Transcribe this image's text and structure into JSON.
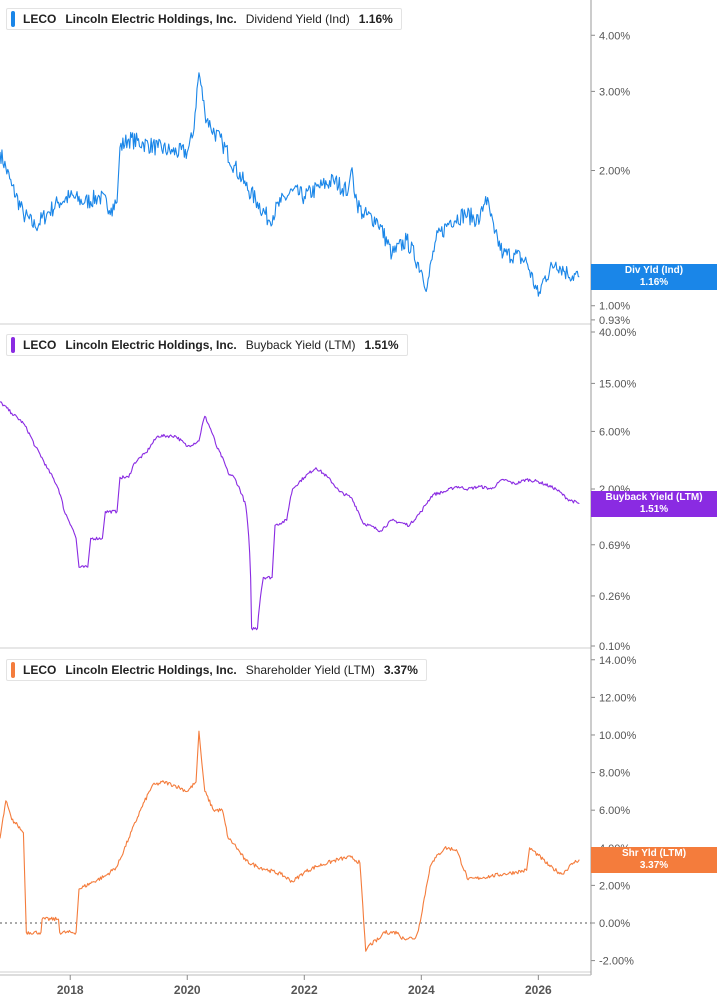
{
  "chart_data": [
    {
      "type": "line",
      "ticker": "LECO",
      "company": "Lincoln Electric Holdings, Inc.",
      "metric": "Dividend Yield (Ind)",
      "current_value": "1.16%",
      "badge_label": "Div Yld (Ind)",
      "color": "#1a86e8",
      "scale": "log",
      "ylim": [
        0.92,
        4.6
      ],
      "y_ticks": [
        {
          "value": 4.0,
          "label": "4.00%"
        },
        {
          "value": 3.0,
          "label": "3.00%"
        },
        {
          "value": 2.0,
          "label": "2.00%"
        },
        {
          "value": 1.0,
          "label": "1.00%"
        },
        {
          "value": 0.93,
          "label": "0.93%"
        }
      ],
      "series": [
        {
          "x": [
            2016.8,
            2017.0,
            2017.2,
            2017.4,
            2017.6,
            2017.8,
            2018.0,
            2018.25,
            2018.5,
            2018.7,
            2018.8,
            2018.85,
            2019.0,
            2019.25,
            2019.5,
            2019.75,
            2020.0,
            2020.1,
            2020.2,
            2020.3,
            2020.4,
            2020.6,
            2020.8,
            2021.0,
            2021.2,
            2021.4,
            2021.6,
            2021.8,
            2022.0,
            2022.3,
            2022.5,
            2022.75,
            2022.8,
            2022.9,
            2023.0,
            2023.25,
            2023.5,
            2023.75,
            2024.0,
            2024.1,
            2024.25,
            2024.5,
            2024.75,
            2025.0,
            2025.1,
            2025.25,
            2025.4,
            2025.6,
            2025.8,
            2026.0,
            2026.1,
            2026.3,
            2026.5,
            2026.7
          ],
          "y": [
            2.2,
            1.85,
            1.6,
            1.5,
            1.6,
            1.7,
            1.75,
            1.7,
            1.75,
            1.65,
            1.7,
            2.25,
            2.35,
            2.3,
            2.25,
            2.2,
            2.2,
            2.4,
            3.3,
            2.7,
            2.5,
            2.3,
            2.05,
            1.85,
            1.7,
            1.55,
            1.7,
            1.8,
            1.75,
            1.85,
            1.9,
            1.8,
            2.0,
            1.7,
            1.6,
            1.55,
            1.3,
            1.4,
            1.2,
            1.1,
            1.4,
            1.55,
            1.6,
            1.55,
            1.75,
            1.45,
            1.3,
            1.3,
            1.25,
            1.05,
            1.15,
            1.25,
            1.18,
            1.16
          ]
        }
      ]
    },
    {
      "type": "line",
      "ticker": "LECO",
      "company": "Lincoln Electric Holdings, Inc.",
      "metric": "Buyback Yield (LTM)",
      "current_value": "1.51%",
      "badge_label": "Buyback Yield (LTM)",
      "color": "#8a2be2",
      "scale": "log",
      "ylim": [
        0.1,
        40.0
      ],
      "y_ticks": [
        {
          "value": 40.0,
          "label": "40.00%"
        },
        {
          "value": 15.0,
          "label": "15.00%"
        },
        {
          "value": 6.0,
          "label": "6.00%"
        },
        {
          "value": 2.0,
          "label": "2.00%"
        },
        {
          "value": 0.69,
          "label": "0.69%"
        },
        {
          "value": 0.26,
          "label": "0.26%"
        },
        {
          "value": 0.1,
          "label": "0.10%"
        }
      ],
      "series": [
        {
          "x": [
            2016.8,
            2017.0,
            2017.2,
            2017.4,
            2017.6,
            2017.8,
            2017.9,
            2018.1,
            2018.15,
            2018.3,
            2018.35,
            2018.55,
            2018.6,
            2018.8,
            2018.85,
            2019.0,
            2019.1,
            2019.3,
            2019.5,
            2019.8,
            2020.0,
            2020.2,
            2020.3,
            2020.5,
            2020.7,
            2020.8,
            2021.0,
            2021.1,
            2021.2,
            2021.3,
            2021.45,
            2021.5,
            2021.7,
            2021.8,
            2022.0,
            2022.2,
            2022.4,
            2022.6,
            2022.8,
            2023.0,
            2023.3,
            2023.5,
            2023.8,
            2024.0,
            2024.2,
            2024.4,
            2024.6,
            2024.8,
            2025.0,
            2025.2,
            2025.4,
            2025.6,
            2025.8,
            2026.0,
            2026.3,
            2026.5,
            2026.7
          ],
          "y": [
            10.5,
            8.5,
            7.0,
            4.5,
            3.0,
            2.0,
            1.3,
            0.78,
            0.45,
            0.45,
            0.78,
            0.78,
            1.3,
            1.3,
            2.5,
            2.5,
            3.3,
            4.0,
            5.5,
            5.5,
            4.5,
            5.0,
            8.0,
            4.5,
            2.7,
            2.5,
            1.45,
            0.14,
            0.14,
            0.37,
            0.37,
            1.0,
            1.1,
            2.0,
            2.5,
            3.0,
            2.5,
            1.9,
            1.7,
            1.05,
            0.9,
            1.1,
            1.0,
            1.3,
            1.8,
            1.9,
            2.1,
            2.0,
            2.1,
            2.0,
            2.4,
            2.2,
            2.4,
            2.3,
            2.0,
            1.65,
            1.51
          ]
        }
      ]
    },
    {
      "type": "line",
      "ticker": "LECO",
      "company": "Lincoln Electric Holdings, Inc.",
      "metric": "Shareholder Yield (LTM)",
      "current_value": "3.37%",
      "badge_label": "Shr Yld (LTM)",
      "color": "#f47c3c",
      "scale": "linear",
      "ylim": [
        -2.5,
        14.2
      ],
      "zero_line": true,
      "y_ticks": [
        {
          "value": 14.0,
          "label": "14.00%"
        },
        {
          "value": 12.0,
          "label": "12.00%"
        },
        {
          "value": 10.0,
          "label": "10.00%"
        },
        {
          "value": 8.0,
          "label": "8.00%"
        },
        {
          "value": 6.0,
          "label": "6.00%"
        },
        {
          "value": 4.0,
          "label": "4.00%"
        },
        {
          "value": 2.0,
          "label": "2.00%"
        },
        {
          "value": 0.0,
          "label": "0.00%"
        },
        {
          "value": -2.0,
          "label": "-2.00%"
        }
      ],
      "series": [
        {
          "x": [
            2016.8,
            2016.9,
            2017.0,
            2017.1,
            2017.2,
            2017.25,
            2017.5,
            2017.52,
            2017.8,
            2017.82,
            2018.1,
            2018.15,
            2018.4,
            2018.6,
            2018.8,
            2019.0,
            2019.2,
            2019.4,
            2019.6,
            2019.8,
            2020.0,
            2020.15,
            2020.2,
            2020.25,
            2020.3,
            2020.45,
            2020.6,
            2020.7,
            2020.8,
            2021.0,
            2021.2,
            2021.4,
            2021.6,
            2021.8,
            2022.0,
            2022.2,
            2022.4,
            2022.6,
            2022.8,
            2022.95,
            2023.05,
            2023.1,
            2023.3,
            2023.35,
            2023.6,
            2023.65,
            2023.9,
            2023.95,
            2024.15,
            2024.2,
            2024.4,
            2024.6,
            2024.8,
            2025.0,
            2025.2,
            2025.4,
            2025.6,
            2025.8,
            2025.85,
            2026.0,
            2026.2,
            2026.4,
            2026.6,
            2026.7
          ],
          "y": [
            4.5,
            6.5,
            5.5,
            5.2,
            4.8,
            -0.5,
            -0.5,
            0.2,
            0.2,
            -0.5,
            -0.5,
            1.8,
            2.2,
            2.5,
            3.0,
            4.5,
            6.0,
            7.3,
            7.5,
            7.3,
            7.0,
            7.5,
            10.2,
            8.5,
            7.0,
            6.0,
            6.0,
            4.5,
            4.2,
            3.3,
            3.0,
            2.8,
            2.6,
            2.2,
            2.7,
            3.0,
            3.2,
            3.4,
            3.5,
            3.2,
            -1.5,
            -1.2,
            -0.8,
            -0.5,
            -0.5,
            -0.8,
            -0.8,
            -0.4,
            3.0,
            3.3,
            4.0,
            3.9,
            2.3,
            2.4,
            2.5,
            2.6,
            2.7,
            2.8,
            4.0,
            3.6,
            3.0,
            2.6,
            3.2,
            3.37
          ]
        }
      ]
    }
  ],
  "x_axis": {
    "range": [
      2016.8,
      2026.9
    ],
    "ticks": [
      {
        "value": 2018,
        "label": "2018"
      },
      {
        "value": 2020,
        "label": "2020"
      },
      {
        "value": 2022,
        "label": "2022"
      },
      {
        "value": 2024,
        "label": "2024"
      },
      {
        "value": 2026,
        "label": "2026"
      }
    ]
  }
}
